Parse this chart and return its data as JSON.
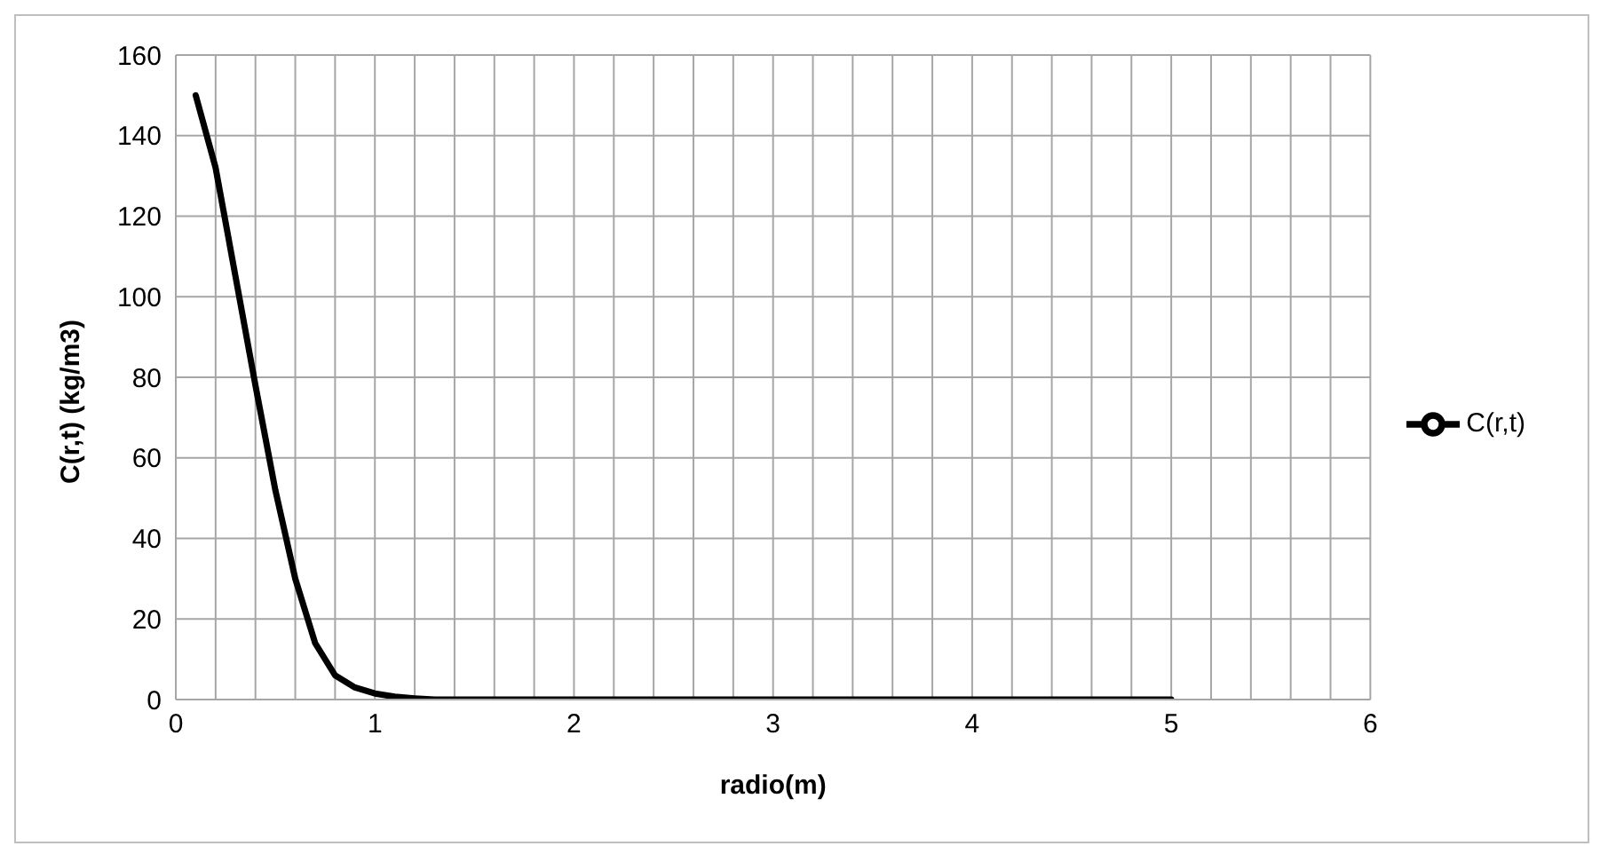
{
  "chart_data": {
    "type": "line",
    "xlabel": "radio(m)",
    "ylabel": "C(r,t) (kg/m3)",
    "x": [
      0.1,
      0.2,
      0.3,
      0.4,
      0.5,
      0.6,
      0.7,
      0.8,
      0.9,
      1.0,
      1.1,
      1.2,
      1.3,
      1.5,
      2,
      2.5,
      3,
      3.5,
      4,
      4.5,
      5
    ],
    "series": [
      {
        "name": "C(r,t)",
        "color": "#000000",
        "values": [
          150,
          132,
          105,
          78,
          52,
          30,
          14,
          6,
          3,
          1.5,
          0.7,
          0.3,
          0,
          0,
          0,
          0,
          0,
          0,
          0,
          0,
          0
        ]
      }
    ],
    "xlim": [
      0,
      6
    ],
    "xticks": [
      0,
      {
        "value": 0.2,
        "label": null
      },
      {
        "value": 0.4,
        "label": null
      },
      {
        "value": 0.6,
        "label": null
      },
      {
        "value": 0.8,
        "label": null
      },
      1,
      {
        "value": 1.2,
        "label": null
      },
      {
        "value": 1.4,
        "label": null
      },
      {
        "value": 1.6,
        "label": null
      },
      {
        "value": 1.8,
        "label": null
      },
      2,
      {
        "value": 2.2,
        "label": null
      },
      {
        "value": 2.4,
        "label": null
      },
      {
        "value": 2.6,
        "label": null
      },
      {
        "value": 2.8,
        "label": null
      },
      3,
      {
        "value": 3.2,
        "label": null
      },
      {
        "value": 3.4,
        "label": null
      },
      {
        "value": 3.6,
        "label": null
      },
      {
        "value": 3.8,
        "label": null
      },
      4,
      {
        "value": 4.2,
        "label": null
      },
      {
        "value": 4.4,
        "label": null
      },
      {
        "value": 4.6,
        "label": null
      },
      {
        "value": 4.8,
        "label": null
      },
      5,
      {
        "value": 5.2,
        "label": null
      },
      {
        "value": 5.4,
        "label": null
      },
      {
        "value": 5.6,
        "label": null
      },
      {
        "value": 5.8,
        "label": null
      },
      6
    ],
    "ylim": [
      0,
      160
    ],
    "yticks": [
      0,
      20,
      40,
      60,
      80,
      100,
      120,
      140,
      160
    ],
    "grid": true,
    "legend": "right",
    "marker": "none",
    "line_style": "solid"
  }
}
